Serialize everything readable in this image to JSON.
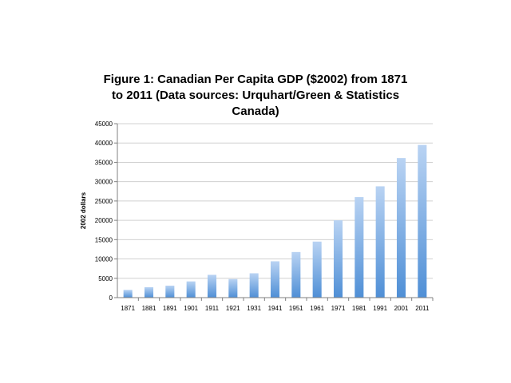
{
  "chart_data": {
    "type": "bar",
    "title_lines": [
      "Figure 1: Canadian Per Capita GDP ($2002) from 1871",
      "to 2011 (Data sources: Urquhart/Green & Statistics",
      "Canada)"
    ],
    "xlabel": "",
    "ylabel": "2002 dollars",
    "ylim": [
      0,
      45000
    ],
    "yticks": [
      "0",
      "5000",
      "10000",
      "15000",
      "20000",
      "25000",
      "30000",
      "35000",
      "40000",
      "45000"
    ],
    "grid": true,
    "categories": [
      "1871",
      "1881",
      "1891",
      "1901",
      "1911",
      "1921",
      "1931",
      "1941",
      "1951",
      "1961",
      "1971",
      "1981",
      "1991",
      "2001",
      "2011"
    ],
    "values": [
      2000,
      2700,
      3100,
      4200,
      5900,
      4800,
      6300,
      9400,
      11800,
      14500,
      20000,
      26000,
      28800,
      36100,
      39500
    ],
    "colors": {
      "bar_top": "#b9d3f3",
      "bar_bottom": "#4f8fd6",
      "grid": "#d0d0d0",
      "axis": "#808080"
    }
  }
}
